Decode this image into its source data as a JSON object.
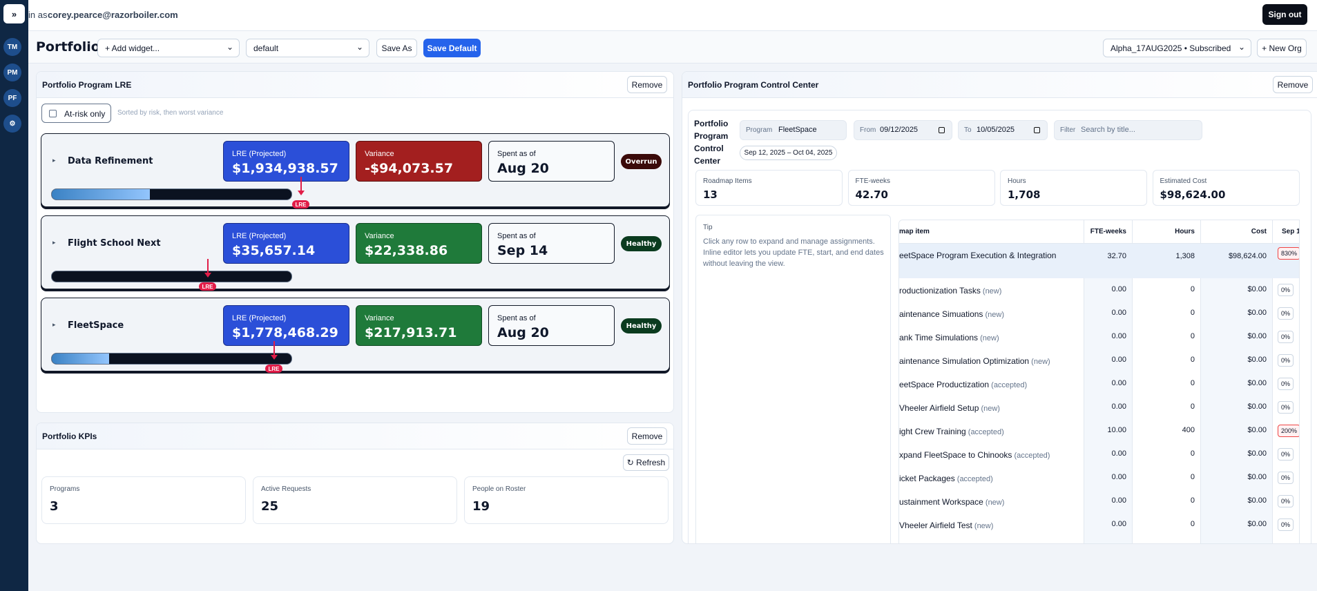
{
  "header": {
    "expand": "»",
    "signed_in_prefix": "in as",
    "user_email": "corey.pearce@razorboiler.com",
    "sign_out": "Sign out"
  },
  "sidebar": {
    "items": [
      "TM",
      "PM",
      "PF",
      "⚙"
    ]
  },
  "toolbar": {
    "title": "Portfolio",
    "add_widget": "+ Add widget...",
    "layout": "default",
    "save_as": "Save As",
    "save_default": "Save Default",
    "org": "Alpha_17AUG2025 • Subscribed",
    "new_org": "+ New Org"
  },
  "lre_panel": {
    "title": "Portfolio Program LRE",
    "remove": "Remove",
    "filter_label": "At-risk only",
    "sort_note": "Sorted by risk, then worst variance",
    "programs": [
      {
        "name": "Data Refinement",
        "lre_label": "LRE (Projected)",
        "lre": "$1,934,938.57",
        "variance_label": "Variance",
        "variance": "-$94,073.57",
        "spent_label": "Spent as of",
        "spent": "Aug 20",
        "status": "Overrun",
        "marker": "LRE"
      },
      {
        "name": "Flight School Next",
        "lre_label": "LRE (Projected)",
        "lre": "$35,657.14",
        "variance_label": "Variance",
        "variance": "$22,338.86",
        "spent_label": "Spent as of",
        "spent": "Sep 14",
        "status": "Healthy",
        "marker": "LRE"
      },
      {
        "name": "FleetSpace",
        "lre_label": "LRE (Projected)",
        "lre": "$1,778,468.29",
        "variance_label": "Variance",
        "variance": "$217,913.71",
        "spent_label": "Spent as of",
        "spent": "Aug 20",
        "status": "Healthy",
        "marker": "LRE"
      }
    ]
  },
  "kpi_panel": {
    "title": "Portfolio KPIs",
    "remove": "Remove",
    "refresh": "↻ Refresh",
    "kpis": [
      {
        "label": "Programs",
        "value": "3"
      },
      {
        "label": "Active Requests",
        "value": "25"
      },
      {
        "label": "People on Roster",
        "value": "19"
      }
    ]
  },
  "control_center": {
    "title": "Portfolio Program Control Center",
    "remove": "Remove",
    "heading": "Portfolio Program Control Center",
    "program_label": "Program",
    "program": "FleetSpace",
    "from_label": "From",
    "from": "09/12/2025",
    "to_label": "To",
    "to": "10/05/2025",
    "filter_label": "Filter",
    "filter_placeholder": "Search by title...",
    "range": "Sep 12, 2025 – Oct 04, 2025",
    "stats": [
      {
        "label": "Roadmap Items",
        "value": "13"
      },
      {
        "label": "FTE-weeks",
        "value": "42.70"
      },
      {
        "label": "Hours",
        "value": "1,708"
      },
      {
        "label": "Estimated Cost",
        "value": "$98,624.00"
      }
    ],
    "tip_label": "Tip",
    "tip": "Click any row to expand and manage assignments. Inline editor lets you update FTE, start, and end dates without leaving the view.",
    "table": {
      "columns": [
        "map item",
        "FTE-weeks",
        "Hours",
        "Cost",
        "Sep 1"
      ],
      "rows": [
        [
          "eetSpace Program Execution & Integration",
          "",
          "32.70",
          "1,308",
          "$98,624.00",
          "830%"
        ],
        [
          "roductionization Tasks",
          "(new)",
          "0.00",
          "0",
          "$0.00",
          "0%"
        ],
        [
          "aintenance Simuations",
          "(new)",
          "0.00",
          "0",
          "$0.00",
          "0%"
        ],
        [
          "ank Time Simulations",
          "(new)",
          "0.00",
          "0",
          "$0.00",
          "0%"
        ],
        [
          "aintenance Simulation Optimization",
          "(new)",
          "0.00",
          "0",
          "$0.00",
          "0%"
        ],
        [
          "eetSpace Productization",
          "(accepted)",
          "0.00",
          "0",
          "$0.00",
          "0%"
        ],
        [
          "Vheeler Airfield Setup",
          "(new)",
          "0.00",
          "0",
          "$0.00",
          "0%"
        ],
        [
          "ight Crew Training",
          "(accepted)",
          "10.00",
          "400",
          "$0.00",
          "200%"
        ],
        [
          "xpand FleetSpace to Chinooks",
          "(accepted)",
          "0.00",
          "0",
          "$0.00",
          "0%"
        ],
        [
          "icket Packages",
          "(accepted)",
          "0.00",
          "0",
          "$0.00",
          "0%"
        ],
        [
          "ustainment Workspace",
          "(new)",
          "0.00",
          "0",
          "$0.00",
          "0%"
        ],
        [
          "Vheeler Airfield Test",
          "(new)",
          "0.00",
          "0",
          "$0.00",
          "0%"
        ]
      ]
    }
  }
}
